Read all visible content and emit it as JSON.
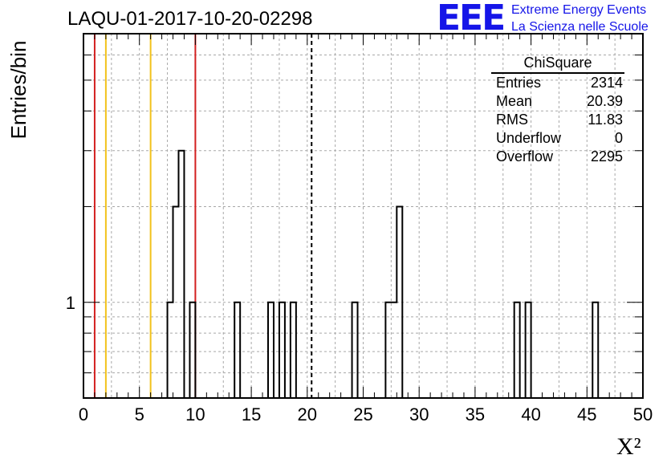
{
  "title": "LAQU-01-2017-10-20-02298",
  "logo": {
    "mark": "EEE",
    "line1": "Extreme Energy Events",
    "line2": "La Scienza nelle Scuole",
    "color": "#1515e8"
  },
  "stats": {
    "name": "ChiSquare",
    "rows": [
      {
        "label": "Entries",
        "value": "2314"
      },
      {
        "label": "Mean",
        "value": "20.39"
      },
      {
        "label": "RMS",
        "value": "11.83"
      },
      {
        "label": "Underflow",
        "value": "0"
      },
      {
        "label": "Overflow",
        "value": "2295"
      }
    ]
  },
  "chart_data": {
    "type": "bar",
    "title": "LAQU-01-2017-10-20-02298",
    "xlabel": "X²",
    "ylabel": "Entries/bin",
    "xlim": [
      0,
      50
    ],
    "ylim": [
      0.5,
      7
    ],
    "log_y": true,
    "grid": true,
    "bin_width": 0.5,
    "x_ticks": [
      "0",
      "5",
      "10",
      "15",
      "20",
      "25",
      "30",
      "35",
      "40",
      "45",
      "50"
    ],
    "y_tick_labels": [
      "1"
    ],
    "bins": [
      {
        "x": 7.5,
        "count": 1
      },
      {
        "x": 8.0,
        "count": 2
      },
      {
        "x": 8.5,
        "count": 3
      },
      {
        "x": 9.5,
        "count": 1
      },
      {
        "x": 13.5,
        "count": 1
      },
      {
        "x": 16.5,
        "count": 1
      },
      {
        "x": 17.5,
        "count": 1
      },
      {
        "x": 18.5,
        "count": 1
      },
      {
        "x": 24.0,
        "count": 1
      },
      {
        "x": 27.0,
        "count": 1
      },
      {
        "x": 27.5,
        "count": 1
      },
      {
        "x": 28.0,
        "count": 2
      },
      {
        "x": 38.5,
        "count": 1
      },
      {
        "x": 39.5,
        "count": 1
      },
      {
        "x": 45.5,
        "count": 1
      }
    ],
    "reference_lines": [
      {
        "x": 1,
        "color": "#d32020"
      },
      {
        "x": 2,
        "color": "#f2c21b"
      },
      {
        "x": 6,
        "color": "#f2c21b"
      },
      {
        "x": 10,
        "color": "#d32020"
      },
      {
        "x": 20.39,
        "color": "#000000",
        "style": "dashed"
      }
    ],
    "histogram_color": "#000000"
  }
}
